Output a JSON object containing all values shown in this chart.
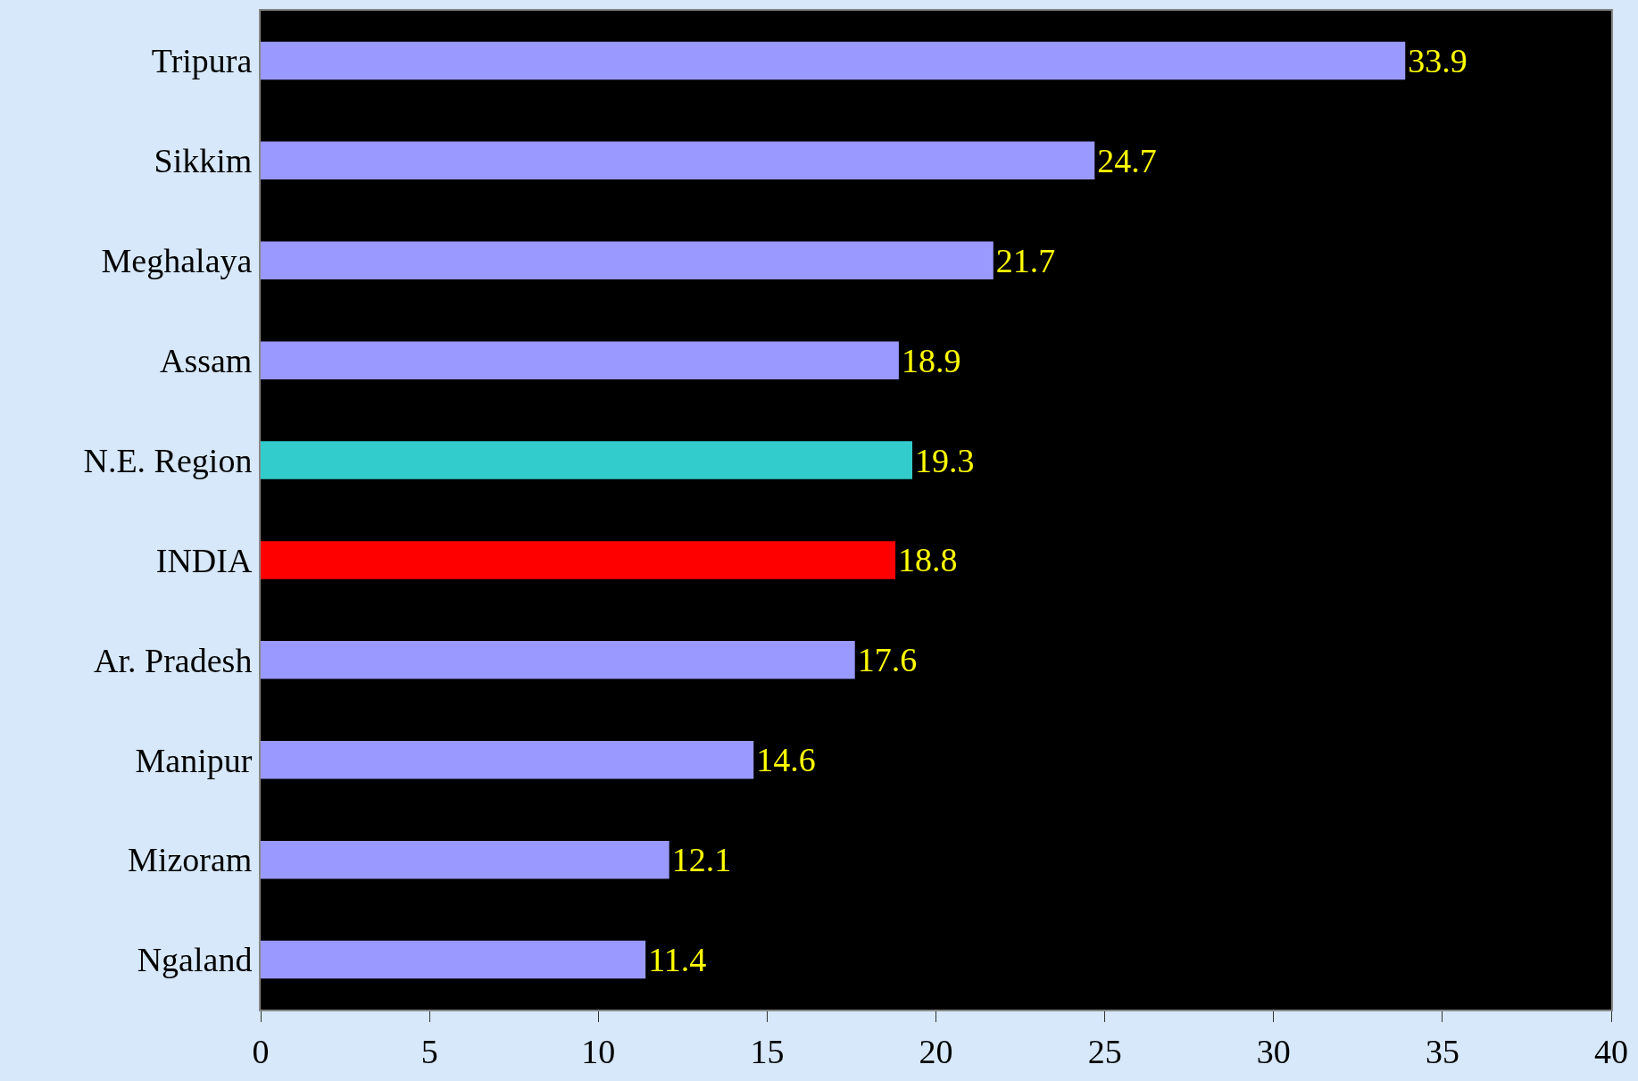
{
  "chart_data": {
    "type": "bar",
    "orientation": "horizontal",
    "categories": [
      "Tripura",
      "Sikkim",
      "Meghalaya",
      "Assam",
      "N.E. Region",
      "INDIA",
      "Ar. Pradesh",
      "Manipur",
      "Mizoram",
      "Ngaland"
    ],
    "values": [
      33.9,
      24.7,
      21.7,
      18.9,
      19.3,
      18.8,
      17.6,
      14.6,
      12.1,
      11.4
    ],
    "colors": [
      "#9999ff",
      "#9999ff",
      "#9999ff",
      "#9999ff",
      "#33cccc",
      "#ff0000",
      "#9999ff",
      "#9999ff",
      "#9999ff",
      "#9999ff"
    ],
    "xlim": [
      0,
      40
    ],
    "xticks": [
      0,
      5,
      10,
      15,
      20,
      25,
      30,
      35,
      40
    ],
    "data_labels": true,
    "grid": false
  }
}
